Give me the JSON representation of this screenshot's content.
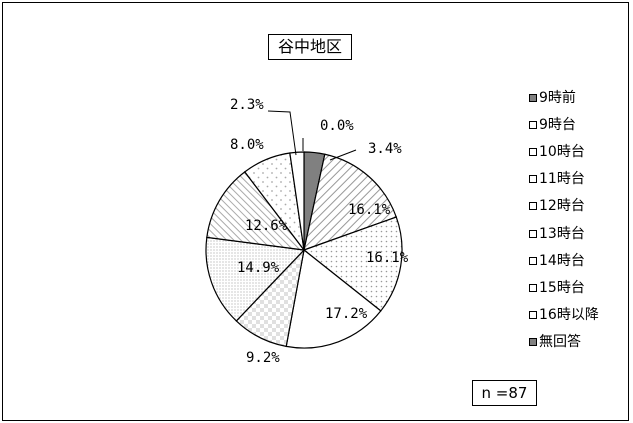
{
  "chart_data": {
    "type": "pie",
    "title": "谷中地区",
    "note": "n =87",
    "categories": [
      "9時前",
      "9時台",
      "10時台",
      "11時台",
      "12時台",
      "13時台",
      "14時台",
      "15時台",
      "16時以降",
      "無回答"
    ],
    "values": [
      3.4,
      16.1,
      16.1,
      17.2,
      9.2,
      14.9,
      12.6,
      8.0,
      2.3,
      0.0
    ],
    "labels": [
      "3.4%",
      "16.1%",
      "16.1%",
      "17.2%",
      "9.2%",
      "14.9%",
      "12.6%",
      "8.0%",
      "2.3%",
      "0.0%"
    ],
    "legend_position": "right",
    "colors": [
      "#808080",
      "#d8d8d8",
      "#e6e6e6",
      "#ffffff",
      "#ececec",
      "#eeeeee",
      "#cfcfcf",
      "#f2f2f2",
      "#ffffff",
      "#808080"
    ]
  }
}
